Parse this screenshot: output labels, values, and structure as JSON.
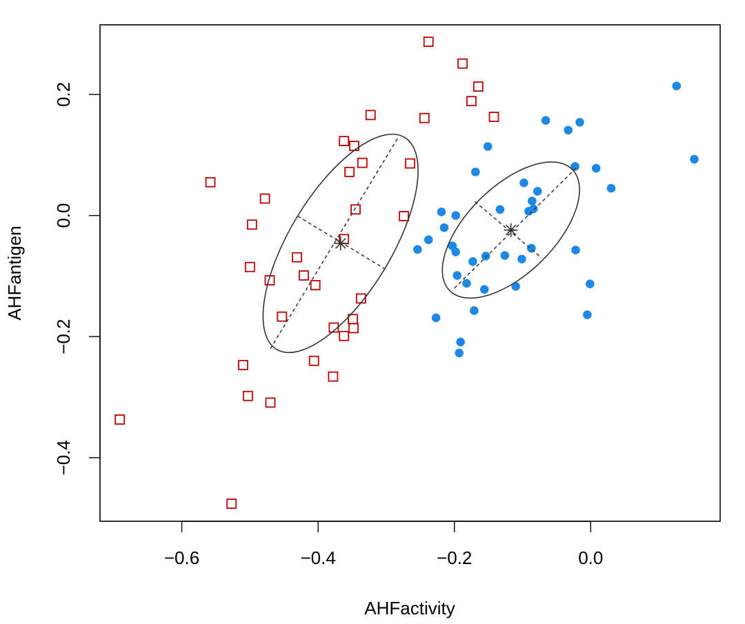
{
  "chart_data": {
    "type": "scatter",
    "title": "",
    "xlabel": "AHFactivity",
    "ylabel": "AHFantigen",
    "xlim": [
      -0.72,
      0.19
    ],
    "ylim": [
      -0.505,
      0.315
    ],
    "xticks": [
      {
        "value": -0.6,
        "label": "−0.6"
      },
      {
        "value": -0.4,
        "label": "−0.4"
      },
      {
        "value": -0.2,
        "label": "−0.2"
      },
      {
        "value": 0.0,
        "label": "0.0"
      }
    ],
    "yticks": [
      {
        "value": -0.4,
        "label": "−0.4"
      },
      {
        "value": -0.2,
        "label": "−0.2"
      },
      {
        "value": 0.0,
        "label": "0.0"
      },
      {
        "value": 0.2,
        "label": "0.2"
      }
    ],
    "grid": false,
    "legend": false,
    "series": [
      {
        "marker": "open-square",
        "color": "#c00000",
        "points": [
          [
            -0.238,
            0.287
          ],
          [
            -0.188,
            0.251
          ],
          [
            -0.165,
            0.213
          ],
          [
            -0.175,
            0.189
          ],
          [
            -0.142,
            0.163
          ],
          [
            -0.244,
            0.161
          ],
          [
            -0.323,
            0.166
          ],
          [
            -0.362,
            0.123
          ],
          [
            -0.347,
            0.115
          ],
          [
            -0.265,
            0.086
          ],
          [
            -0.335,
            0.087
          ],
          [
            -0.354,
            0.072
          ],
          [
            -0.558,
            0.055
          ],
          [
            -0.478,
            0.028
          ],
          [
            -0.497,
            -0.015
          ],
          [
            -0.345,
            0.01
          ],
          [
            -0.274,
            -0.001
          ],
          [
            -0.362,
            -0.039
          ],
          [
            -0.431,
            -0.069
          ],
          [
            -0.5,
            -0.085
          ],
          [
            -0.421,
            -0.099
          ],
          [
            -0.471,
            -0.107
          ],
          [
            -0.404,
            -0.115
          ],
          [
            -0.337,
            -0.137
          ],
          [
            -0.453,
            -0.167
          ],
          [
            -0.349,
            -0.171
          ],
          [
            -0.377,
            -0.185
          ],
          [
            -0.348,
            -0.186
          ],
          [
            -0.362,
            -0.199
          ],
          [
            -0.406,
            -0.24
          ],
          [
            -0.51,
            -0.247
          ],
          [
            -0.378,
            -0.266
          ],
          [
            -0.503,
            -0.298
          ],
          [
            -0.47,
            -0.309
          ],
          [
            -0.691,
            -0.337
          ],
          [
            -0.527,
            -0.476
          ]
        ],
        "centroid": [
          -0.367,
          -0.046
        ],
        "ellipse": {
          "center": [
            -0.367,
            -0.046
          ],
          "major_axis_ends": [
            [
              -0.47,
              -0.22
            ],
            [
              -0.282,
              0.13
            ]
          ],
          "minor_axis_ends": [
            [
              -0.43,
              -0.001
            ],
            [
              -0.302,
              -0.088
            ]
          ]
        }
      },
      {
        "marker": "filled-circle",
        "color": "#1e88e5",
        "points": [
          [
            0.126,
            0.214
          ],
          [
            0.152,
            0.093
          ],
          [
            -0.066,
            0.157
          ],
          [
            -0.016,
            0.154
          ],
          [
            -0.033,
            0.141
          ],
          [
            -0.151,
            0.114
          ],
          [
            -0.023,
            0.081
          ],
          [
            0.008,
            0.078
          ],
          [
            -0.169,
            0.072
          ],
          [
            0.03,
            0.045
          ],
          [
            -0.098,
            0.054
          ],
          [
            -0.078,
            0.04
          ],
          [
            -0.086,
            0.024
          ],
          [
            -0.133,
            0.01
          ],
          [
            -0.084,
            0.011
          ],
          [
            -0.091,
            0.007
          ],
          [
            -0.219,
            0.006
          ],
          [
            -0.198,
            0.0
          ],
          [
            -0.215,
            -0.02
          ],
          [
            -0.238,
            -0.04
          ],
          [
            -0.203,
            -0.05
          ],
          [
            -0.254,
            -0.056
          ],
          [
            -0.022,
            -0.057
          ],
          [
            -0.087,
            -0.054
          ],
          [
            -0.198,
            -0.06
          ],
          [
            -0.154,
            -0.067
          ],
          [
            -0.126,
            -0.066
          ],
          [
            -0.101,
            -0.072
          ],
          [
            -0.173,
            -0.076
          ],
          [
            -0.196,
            -0.099
          ],
          [
            -0.182,
            -0.112
          ],
          [
            -0.11,
            -0.117
          ],
          [
            -0.156,
            -0.122
          ],
          [
            -0.001,
            -0.113
          ],
          [
            -0.171,
            -0.157
          ],
          [
            -0.005,
            -0.164
          ],
          [
            -0.227,
            -0.169
          ],
          [
            -0.191,
            -0.209
          ],
          [
            -0.193,
            -0.227
          ]
        ],
        "centroid": [
          -0.117,
          -0.024
        ],
        "ellipse": {
          "center": [
            -0.117,
            -0.024
          ],
          "major_axis_ends": [
            [
              -0.2,
              -0.12
            ],
            [
              -0.02,
              0.08
            ]
          ],
          "minor_axis_ends": [
            [
              -0.17,
              0.023
            ],
            [
              -0.072,
              -0.07
            ]
          ]
        }
      }
    ]
  }
}
